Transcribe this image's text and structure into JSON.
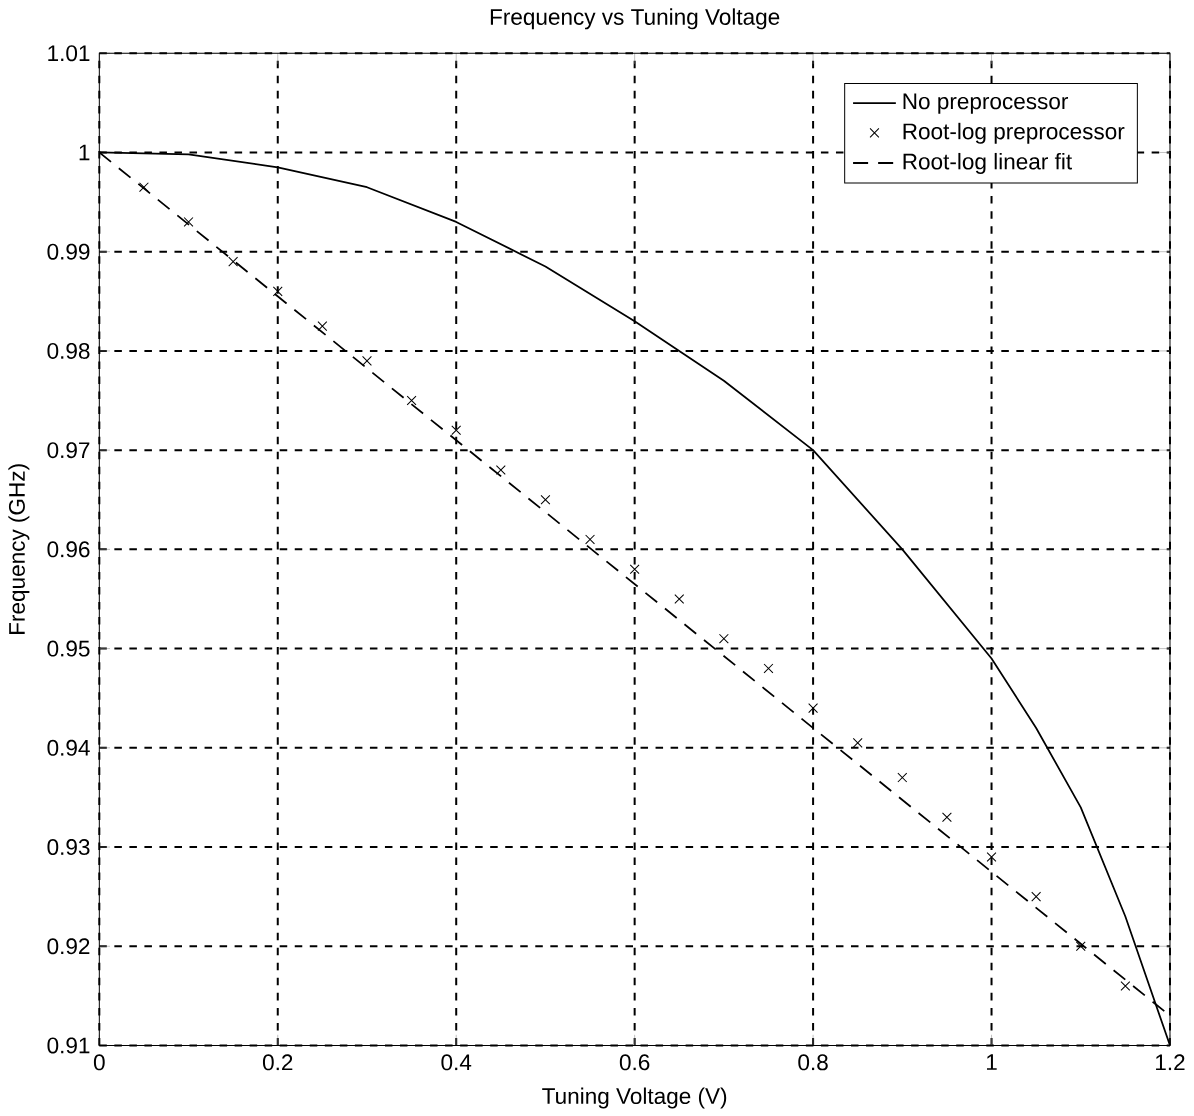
{
  "chart_data": {
    "type": "line",
    "title": "Frequency vs Tuning Voltage",
    "xlabel": "Tuning Voltage (V)",
    "ylabel": "Frequency (GHz)",
    "xlim": [
      0,
      1.2
    ],
    "ylim": [
      0.91,
      1.01
    ],
    "xticks": [
      0,
      0.2,
      0.4,
      0.6,
      0.8,
      1,
      1.2
    ],
    "yticks": [
      0.91,
      0.92,
      0.93,
      0.94,
      0.95,
      0.96,
      0.97,
      0.98,
      0.99,
      1,
      1.01
    ],
    "grid": true,
    "legend": "top right",
    "series": [
      {
        "name": "No preprocessor",
        "line_style": "solid",
        "marker": "none",
        "color": "#000000",
        "x": [
          0,
          0.1,
          0.2,
          0.3,
          0.4,
          0.5,
          0.6,
          0.7,
          0.8,
          0.9,
          1.0,
          1.05,
          1.1,
          1.15,
          1.2
        ],
        "values": [
          1.0,
          0.9998,
          0.9985,
          0.9965,
          0.993,
          0.9885,
          0.983,
          0.977,
          0.97,
          0.96,
          0.949,
          0.942,
          0.934,
          0.923,
          0.91
        ]
      },
      {
        "name": "Root-log preprocessor",
        "type": "scatter",
        "marker": "cross",
        "color": "#000000",
        "x": [
          0.05,
          0.1,
          0.15,
          0.2,
          0.25,
          0.3,
          0.35,
          0.4,
          0.45,
          0.5,
          0.55,
          0.6,
          0.65,
          0.7,
          0.75,
          0.8,
          0.85,
          0.9,
          0.95,
          1.0,
          1.05,
          1.1,
          1.15
        ],
        "values": [
          0.9965,
          0.993,
          0.989,
          0.986,
          0.9825,
          0.979,
          0.975,
          0.972,
          0.968,
          0.965,
          0.961,
          0.958,
          0.955,
          0.951,
          0.948,
          0.944,
          0.9405,
          0.937,
          0.933,
          0.929,
          0.925,
          0.92,
          0.916
        ]
      },
      {
        "name": "Root-log linear fit",
        "line_style": "dashed",
        "marker": "none",
        "color": "#000000",
        "x": [
          0,
          1.2
        ],
        "values": [
          1.0,
          0.913
        ]
      }
    ]
  }
}
